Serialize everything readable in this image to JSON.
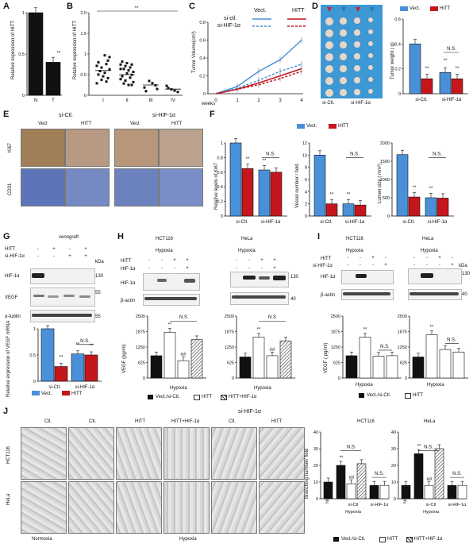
{
  "panels": {
    "A": {
      "label": "A",
      "ylabel": "Relative expression of HITT",
      "yticks": [
        "0",
        "0.5",
        "1"
      ],
      "categories": [
        "N",
        "T"
      ],
      "values": [
        1.0,
        0.4
      ],
      "sig": "**"
    },
    "B": {
      "label": "B",
      "ylabel": "Relative expression of HITT",
      "yticks": [
        "0",
        "0.5",
        "1",
        "1.5",
        "2.0"
      ],
      "categories": [
        "I",
        "II",
        "III",
        "IV"
      ],
      "sig": "**"
    },
    "C": {
      "label": "C",
      "ylabel": "Tumor Volume(cm³)",
      "yticks": [
        "0",
        "0.2",
        "0.4",
        "0.6",
        "0.8"
      ],
      "xlabel": "weeks",
      "xticks": [
        "0",
        "1",
        "2",
        "3",
        "4"
      ],
      "legend": [
        "si-ctl.",
        "si-HIF-1α"
      ],
      "legend_header": [
        "Vect.",
        "HITT"
      ]
    },
    "D": {
      "label": "D",
      "ylabel": "Tumor weight ( g)",
      "yticks": [
        "0",
        "0.2",
        "0.4",
        "0.6"
      ],
      "legend": [
        "Vect.",
        "HITT"
      ],
      "groups": [
        "si-Ctl.",
        "si-HIF-1α"
      ],
      "sig": [
        "**",
        "**",
        "**",
        "N.S."
      ],
      "img_groups": [
        "si-Ctl.",
        "si-HIF-1α"
      ]
    },
    "E": {
      "label": "E",
      "groups": [
        "si-Ctl.",
        "si-HIF-1α"
      ],
      "cols": [
        "Vect",
        "HITT",
        "Vect",
        "HITT"
      ],
      "rows": [
        "Ki67",
        "CD31"
      ]
    },
    "F": {
      "label": "F",
      "legend": [
        "Vect.",
        "HITT"
      ],
      "charts": [
        {
          "ylabel": "Relative levels of Ki67",
          "yticks": [
            "0",
            "0.2",
            "0.4",
            "0.6",
            "0.8",
            "1"
          ]
        },
        {
          "ylabel": "Vessel number / field",
          "yticks": [
            "0",
            "2",
            "4",
            "6",
            "8",
            "10",
            "12"
          ]
        },
        {
          "ylabel": "Lumen size  ( mm²)",
          "yticks": [
            "0",
            "500",
            "1000",
            "1500",
            "2000"
          ]
        }
      ],
      "groups": [
        "si-Ctl.",
        "si-HIF-1α"
      ],
      "sig": [
        "*",
        "**",
        "**",
        "**",
        "**",
        "**",
        "**",
        "**",
        "**",
        "N.S."
      ]
    },
    "G": {
      "label": "G",
      "title": "xenograft",
      "row_labels": [
        "HITT",
        "si-HIF-1α"
      ],
      "row_signs": [
        [
          "-",
          "+",
          "-",
          "+"
        ],
        [
          "-",
          "-",
          "+",
          "+"
        ]
      ],
      "blots": [
        "HIF-1α",
        "VEGF",
        "α-tublin"
      ],
      "kda": "kDa",
      "markers": [
        "130",
        "55",
        "55"
      ],
      "ylabel": "Relative expression of VEGF mRNA",
      "yticks": [
        "0",
        "0.5",
        "1"
      ],
      "groups": [
        "si-Ctl.",
        "si-HIF-1α"
      ],
      "legend": [
        "Vect.",
        "HITT"
      ],
      "sig": [
        "**",
        "**",
        "**",
        "N.S."
      ]
    },
    "H": {
      "label": "H",
      "cells": [
        "HCT116",
        "HeLa"
      ],
      "condition": "Hypoxia",
      "row_labels": [
        "HITT",
        "HIF-1α"
      ],
      "row_signs": [
        [
          "-",
          "-",
          "+",
          "+"
        ],
        [
          "-",
          "-",
          "-",
          "+"
        ]
      ],
      "blots": [
        "HIF-1α",
        "β-actin"
      ],
      "markers": [
        "130",
        "40"
      ],
      "ylabel": "VEGF  (pg/ml)",
      "yticks": [
        "0",
        "625",
        "1250",
        "1875",
        "2500"
      ],
      "sig": [
        "N.S",
        "**",
        "##",
        "N.S",
        "**",
        "##"
      ],
      "legend": [
        "Vect./si-Ctl.",
        "HITT",
        "HITT+HIF-1α"
      ],
      "xlabel": "Hypoxia"
    },
    "I": {
      "label": "I",
      "cells": [
        "HCT116",
        "HeLa"
      ],
      "condition": "Hypoxia",
      "row_labels": [
        "HITT",
        "si-HIF-1α"
      ],
      "row_signs": [
        [
          "-",
          "-",
          "+",
          "-"
        ],
        [
          "-",
          "-",
          "-",
          "+"
        ]
      ],
      "blots": [
        "HIF-1α",
        "β-actin"
      ],
      "kda": "kDa",
      "markers": [
        "130",
        "40"
      ],
      "ylabel": "VEGF  ( pg/ml)",
      "yticks": [
        "0",
        "625",
        "1250",
        "1875",
        "2500"
      ],
      "sig": [
        "**",
        "N.S.",
        "**",
        "N.S."
      ],
      "legend": [
        "Vect./si-Ctl.",
        "HITT"
      ],
      "xlabel": "Hypoxia"
    },
    "J": {
      "label": "J",
      "cols": [
        "Ctl.",
        "Ctl.",
        "HITT",
        "HITT+HIF-1α",
        "Ctl.",
        "HITT"
      ],
      "group_header": "si-HIF-1α",
      "rows": [
        "HCT116",
        "HeLa"
      ],
      "bottom": [
        "Normoxia",
        "Hypoxia"
      ],
      "charts": [
        {
          "title": "HCT116",
          "ylabel": "Branching number/ field",
          "yticks": [
            "0",
            "10",
            "20",
            "30",
            "40"
          ]
        },
        {
          "title": "HeLa",
          "yticks": [
            "0",
            "10",
            "20",
            "30",
            "40"
          ]
        }
      ],
      "x_labels": [
        "Normoxia",
        "si-Ctl",
        "si-HIF-1α"
      ],
      "xlabel": "Hypoxia",
      "sig": [
        "N.S",
        "**",
        "##",
        "N.S.",
        "N.S.",
        "**",
        "##",
        "N.S."
      ],
      "legend": [
        "Vect./si-Ctl.",
        "HITT",
        "HITT+HIF-1α"
      ]
    }
  },
  "chart_data": [
    {
      "type": "bar",
      "panel": "A",
      "categories": [
        "N",
        "T"
      ],
      "values": [
        1.0,
        0.4
      ],
      "ylim": [
        0,
        1
      ]
    },
    {
      "type": "scatter",
      "panel": "B",
      "categories": [
        "I",
        "II",
        "III",
        "IV"
      ],
      "means": [
        0.6,
        0.5,
        0.25,
        0.15
      ],
      "ylim": [
        0,
        2
      ]
    },
    {
      "type": "line",
      "panel": "C",
      "x": [
        0,
        1,
        2,
        3,
        4
      ],
      "ylim": [
        0,
        0.8
      ],
      "series": [
        {
          "name": "Vect. si-ctl.",
          "values": [
            0,
            0.08,
            0.25,
            0.38,
            0.6
          ]
        },
        {
          "name": "HITT si-ctl.",
          "values": [
            0,
            0.05,
            0.12,
            0.2,
            0.28
          ]
        },
        {
          "name": "Vect. si-HIF-1α",
          "values": [
            0,
            0.06,
            0.15,
            0.25,
            0.33
          ]
        },
        {
          "name": "HITT si-HIF-1α",
          "values": [
            0,
            0.05,
            0.1,
            0.17,
            0.25
          ]
        }
      ]
    },
    {
      "type": "bar",
      "panel": "D",
      "categories": [
        "si-Ctl.",
        "si-HIF-1α"
      ],
      "ylim": [
        0,
        0.6
      ],
      "series": [
        {
          "name": "Vect.",
          "values": [
            0.4,
            0.17
          ]
        },
        {
          "name": "HITT",
          "values": [
            0.12,
            0.12
          ]
        }
      ]
    },
    {
      "type": "bar",
      "panel": "F1",
      "categories": [
        "si-Ctl.",
        "si-HIF-1α"
      ],
      "ylim": [
        0,
        1
      ],
      "series": [
        {
          "name": "Vect.",
          "values": [
            1.0,
            0.63
          ]
        },
        {
          "name": "HITT",
          "values": [
            0.65,
            0.6
          ]
        }
      ]
    },
    {
      "type": "bar",
      "panel": "F2",
      "categories": [
        "si-Ctl.",
        "si-HIF-1α"
      ],
      "ylim": [
        0,
        12
      ],
      "series": [
        {
          "name": "Vect.",
          "values": [
            10,
            2
          ]
        },
        {
          "name": "HITT",
          "values": [
            2,
            1.8
          ]
        }
      ]
    },
    {
      "type": "bar",
      "panel": "F3",
      "categories": [
        "si-Ctl.",
        "si-HIF-1α"
      ],
      "ylim": [
        0,
        2000
      ],
      "series": [
        {
          "name": "Vect.",
          "values": [
            1680,
            500
          ]
        },
        {
          "name": "HITT",
          "values": [
            520,
            490
          ]
        }
      ]
    },
    {
      "type": "bar",
      "panel": "G",
      "categories": [
        "si-Ctl.",
        "si-HIF-1α"
      ],
      "ylim": [
        0,
        1
      ],
      "series": [
        {
          "name": "Vect.",
          "values": [
            1.0,
            0.52
          ]
        },
        {
          "name": "HITT",
          "values": [
            0.28,
            0.5
          ]
        }
      ]
    },
    {
      "type": "bar",
      "panel": "H-HCT116",
      "ylim": [
        0,
        2500
      ],
      "values": [
        900,
        1850,
        700,
        1550
      ]
    },
    {
      "type": "bar",
      "panel": "H-HeLa",
      "ylim": [
        0,
        2500
      ],
      "values": [
        850,
        1650,
        900,
        1500
      ]
    },
    {
      "type": "bar",
      "panel": "I-HCT116",
      "ylim": [
        0,
        2500
      ],
      "values": [
        900,
        1650,
        880,
        900
      ]
    },
    {
      "type": "bar",
      "panel": "I-HeLa",
      "ylim": [
        0,
        2500
      ],
      "values": [
        850,
        1750,
        1150,
        1050
      ]
    },
    {
      "type": "bar",
      "panel": "J-HCT116",
      "ylim": [
        0,
        40
      ],
      "values": [
        10,
        20,
        9,
        21,
        8,
        8
      ]
    },
    {
      "type": "bar",
      "panel": "J-HeLa",
      "ylim": [
        0,
        40
      ],
      "values": [
        8,
        27,
        8,
        30,
        8,
        8
      ]
    }
  ]
}
